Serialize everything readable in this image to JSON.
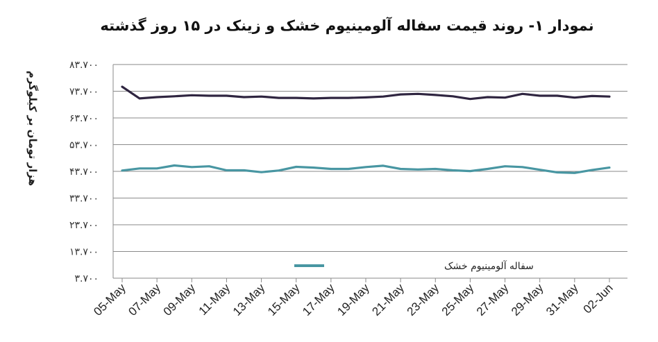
{
  "chart_data": {
    "type": "line",
    "title": "نمودار ۱- روند قیمت سفاله آلومینیوم خشک و زینک در ۱۵ روز گذشته",
    "ylabel": "هزار تومان بر کیلوگرم",
    "xlabel": "",
    "ylim": [
      3700,
      83700
    ],
    "yticks": [
      83700,
      73700,
      63700,
      53700,
      43700,
      33700,
      23700,
      13700,
      3700
    ],
    "ytick_labels": [
      "۸۳.۷۰۰",
      "۷۳.۷۰۰",
      "۶۳.۷۰۰",
      "۵۳.۷۰۰",
      "۴۳.۷۰۰",
      "۳۳.۷۰۰",
      "۲۳.۷۰۰",
      "۱۳.۷۰۰",
      "۳.۷۰۰"
    ],
    "xtick_labels": [
      "05-May",
      "07-May",
      "09-May",
      "11-May",
      "13-May",
      "15-May",
      "17-May",
      "19-May",
      "21-May",
      "23-May",
      "25-May",
      "27-May",
      "29-May",
      "31-May",
      "02-Jun"
    ],
    "grid": true,
    "legend_position": "bottom",
    "series": [
      {
        "name": "",
        "color": "#2f2540",
        "values": [
          75400,
          71000,
          71500,
          71800,
          72200,
          72000,
          72000,
          71500,
          71700,
          71200,
          71200,
          71000,
          71200,
          71200,
          71400,
          71700,
          72500,
          72700,
          72300,
          71800,
          70800,
          71500,
          71300,
          72700,
          72000,
          72000,
          71300,
          71900,
          71700
        ]
      },
      {
        "name": "سفاله آلومینیوم خشک",
        "color": "#4896a2",
        "values": [
          44000,
          44800,
          44800,
          45900,
          45300,
          45600,
          44100,
          44100,
          43400,
          44000,
          45400,
          45100,
          44600,
          44600,
          45300,
          45800,
          44600,
          44400,
          44600,
          44100,
          43800,
          44600,
          45600,
          45300,
          44300,
          43300,
          43100,
          44200,
          45100
        ]
      }
    ]
  }
}
